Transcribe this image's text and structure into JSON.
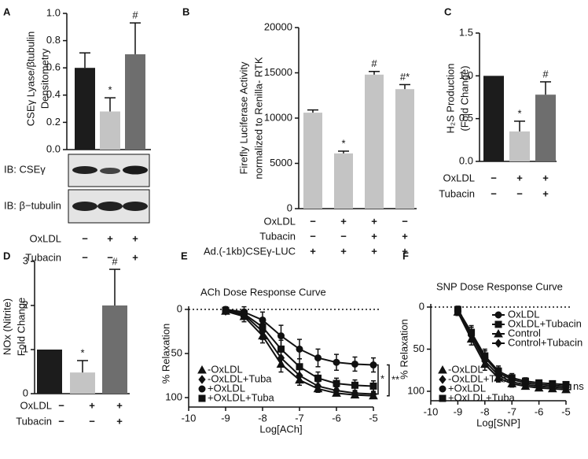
{
  "chart_data": [
    {
      "panel": "A",
      "type": "bar",
      "ylabel": [
        "CSEγ Lyase/βtubulin",
        "Densitometry"
      ],
      "values": [
        0.6,
        0.28,
        0.7
      ],
      "errors": [
        0.11,
        0.1,
        0.23
      ],
      "annotations": [
        null,
        "*",
        "#"
      ],
      "colors": [
        "#1c1c1c",
        "#c4c4c4",
        "#6e6e6e"
      ],
      "ylim": [
        0,
        1
      ],
      "yticks": [
        {
          "value": 0,
          "label": "0.0"
        },
        {
          "value": 0.2,
          "label": "0.2"
        },
        {
          "value": 0.4,
          "label": "0.4"
        },
        {
          "value": 0.6,
          "label": "0.6"
        },
        {
          "value": 0.8,
          "label": "0.8"
        },
        {
          "value": 1,
          "label": "1.0"
        }
      ],
      "blots": [
        "IB: CSEγ",
        "IB: β−tubulin"
      ],
      "conditions": [
        {
          "name": "OxLDL",
          "marks": [
            "−",
            "+",
            "+"
          ]
        },
        {
          "name": "Tubacin",
          "marks": [
            "−",
            "−",
            "+"
          ]
        }
      ]
    },
    {
      "panel": "B",
      "type": "bar",
      "ylabel": [
        "Firefly Luciferase Activity",
        "normalized to Renilla- RTK"
      ],
      "values": [
        10600,
        6100,
        14800,
        13200
      ],
      "errors": [
        300,
        250,
        350,
        500
      ],
      "annotations": [
        null,
        "*",
        "#",
        "#*"
      ],
      "colors": [
        "#c4c4c4",
        "#c4c4c4",
        "#c4c4c4",
        "#c4c4c4"
      ],
      "ylim": [
        0,
        20000
      ],
      "yticks": [
        0,
        5000,
        10000,
        15000,
        20000
      ],
      "conditions": [
        {
          "name": "OxLDL",
          "marks": [
            "−",
            "+",
            "+",
            "−"
          ]
        },
        {
          "name": "Tubacin",
          "marks": [
            "−",
            "−",
            "+",
            "+"
          ]
        },
        {
          "name": "Ad.(-1kb)CSEγ-LUC",
          "marks": [
            "+",
            "+",
            "+",
            "+"
          ]
        }
      ]
    },
    {
      "panel": "C",
      "type": "bar",
      "ylabel": [
        "H₂S Production",
        "(Fold Change)"
      ],
      "values": [
        1.0,
        0.35,
        0.78
      ],
      "errors": [
        null,
        0.12,
        0.15
      ],
      "annotations": [
        null,
        "*",
        "#"
      ],
      "colors": [
        "#1c1c1c",
        "#c4c4c4",
        "#6e6e6e"
      ],
      "ylim": [
        0,
        1.5
      ],
      "yticks": [
        {
          "value": 0,
          "label": "0.0"
        },
        {
          "value": 0.5,
          "label": "0.5"
        },
        {
          "value": 1,
          "label": "1.0"
        },
        {
          "value": 1.5,
          "label": "1.5"
        }
      ],
      "conditions": [
        {
          "name": "OxLDL",
          "marks": [
            "−",
            "+",
            "+"
          ]
        },
        {
          "name": "Tubacin",
          "marks": [
            "−",
            "−",
            "+"
          ]
        }
      ]
    },
    {
      "panel": "D",
      "type": "bar",
      "ylabel": [
        "NOx (Nitrite)",
        "Fold Change"
      ],
      "values": [
        1.0,
        0.48,
        2.0
      ],
      "errors": [
        null,
        0.27,
        0.82
      ],
      "annotations": [
        null,
        "*",
        "#"
      ],
      "colors": [
        "#1c1c1c",
        "#c4c4c4",
        "#6e6e6e"
      ],
      "ylim": [
        0,
        3
      ],
      "yticks": [
        0,
        1,
        2,
        3
      ],
      "conditions": [
        {
          "name": "OxLDL",
          "marks": [
            "−",
            "+",
            "+"
          ]
        },
        {
          "name": "Tubacin",
          "marks": [
            "−",
            "−",
            "+"
          ]
        }
      ]
    },
    {
      "panel": "E",
      "type": "line",
      "title": "ACh Dose Response Curve",
      "xlabel": "Log[ACh]",
      "ylabel": "% Relaxation",
      "x": [
        -9,
        -8.5,
        -8,
        -7.5,
        -7,
        -6.5,
        -6,
        -5.5,
        -5
      ],
      "xlim": [
        -10,
        -5
      ],
      "xticks": [
        -10,
        -9,
        -8,
        -7,
        -6,
        -5
      ],
      "ylim": [
        0,
        100
      ],
      "yticks": [
        0,
        50,
        100
      ],
      "y_inverted": true,
      "refline": 0,
      "series": [
        {
          "name": "-OxLDL",
          "marker": "triangle",
          "color": "#111",
          "values": [
            2,
            8,
            30,
            62,
            80,
            90,
            95,
            97,
            98
          ],
          "errors": [
            3,
            6,
            8,
            9,
            6,
            4,
            3,
            3,
            3
          ]
        },
        {
          "name": "-OxLDL+Tuba",
          "marker": "diamond",
          "color": "#111",
          "values": [
            2,
            6,
            25,
            55,
            75,
            87,
            92,
            95,
            96
          ],
          "errors": [
            3,
            5,
            9,
            10,
            7,
            5,
            4,
            3,
            3
          ]
        },
        {
          "name": "+OxLDL",
          "marker": "circle",
          "color": "#111",
          "values": [
            0,
            3,
            12,
            30,
            45,
            55,
            60,
            62,
            63
          ],
          "errors": [
            3,
            6,
            9,
            12,
            11,
            10,
            9,
            8,
            8
          ]
        },
        {
          "name": "+OxLDL+Tuba",
          "marker": "square",
          "color": "#111",
          "values": [
            1,
            5,
            20,
            45,
            65,
            78,
            84,
            86,
            87
          ],
          "errors": [
            3,
            5,
            8,
            10,
            9,
            7,
            6,
            6,
            6
          ]
        }
      ],
      "bracket_labels": [
        "*",
        "**"
      ]
    },
    {
      "panel": "F",
      "type": "line",
      "title": "SNP Dose Response Curve",
      "xlabel": "Log[SNP]",
      "ylabel": "% Relaxation",
      "x": [
        -9,
        -8.5,
        -8,
        -7.5,
        -7,
        -6.5,
        -6,
        -5.5,
        -5
      ],
      "xlim": [
        -10,
        -5
      ],
      "xticks": [
        -10,
        -9,
        -8,
        -7,
        -6,
        -5
      ],
      "ylim": [
        0,
        100
      ],
      "yticks": [
        0,
        50,
        100
      ],
      "y_inverted": true,
      "refline": 0,
      "series": [
        {
          "name": "-OxLDL",
          "marker": "triangle",
          "color": "#111",
          "values": [
            6,
            38,
            68,
            84,
            91,
            94,
            96,
            97,
            98
          ],
          "errors": [
            4,
            7,
            7,
            5,
            4,
            3,
            3,
            3,
            3
          ]
        },
        {
          "name": "-OxLDL+Tuba",
          "marker": "diamond",
          "color": "#111",
          "values": [
            4,
            34,
            64,
            81,
            89,
            92,
            94,
            95,
            96
          ],
          "errors": [
            4,
            7,
            7,
            5,
            4,
            3,
            3,
            3,
            3
          ]
        },
        {
          "name": "+OxLDL",
          "marker": "circle",
          "color": "#111",
          "values": [
            5,
            32,
            60,
            78,
            86,
            90,
            92,
            93,
            94
          ],
          "errors": [
            4,
            8,
            8,
            6,
            5,
            4,
            3,
            3,
            3
          ]
        },
        {
          "name": "+OxLDL+Tuba",
          "marker": "square",
          "color": "#111",
          "values": [
            3,
            30,
            58,
            76,
            84,
            88,
            90,
            91,
            92
          ],
          "errors": [
            4,
            8,
            8,
            6,
            5,
            4,
            3,
            3,
            3
          ]
        }
      ],
      "legend2": [
        "OxLDL",
        "OxLDL+Tubacin",
        "Control",
        "Control+Tubacin"
      ],
      "bracket_labels": [
        "ns"
      ]
    }
  ]
}
